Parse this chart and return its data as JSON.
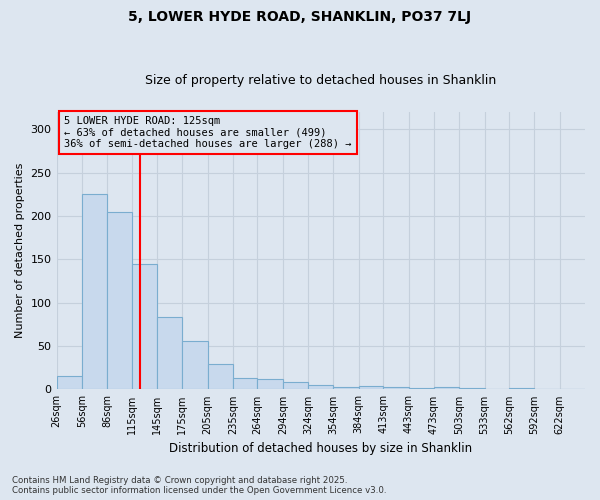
{
  "title": "5, LOWER HYDE ROAD, SHANKLIN, PO37 7LJ",
  "subtitle": "Size of property relative to detached houses in Shanklin",
  "xlabel": "Distribution of detached houses by size in Shanklin",
  "ylabel": "Number of detached properties",
  "bar_color": "#c8d9ed",
  "bar_edge_color": "#7aadcf",
  "background_color": "#dde6f0",
  "bins": [
    26,
    56,
    86,
    115,
    145,
    175,
    205,
    235,
    264,
    294,
    324,
    354,
    384,
    413,
    443,
    473,
    503,
    533,
    562,
    592,
    622
  ],
  "bin_labels": [
    "26sqm",
    "56sqm",
    "86sqm",
    "115sqm",
    "145sqm",
    "175sqm",
    "205sqm",
    "235sqm",
    "264sqm",
    "294sqm",
    "324sqm",
    "354sqm",
    "384sqm",
    "413sqm",
    "443sqm",
    "473sqm",
    "503sqm",
    "533sqm",
    "562sqm",
    "592sqm",
    "622sqm"
  ],
  "values": [
    15,
    225,
    205,
    145,
    83,
    56,
    29,
    13,
    12,
    8,
    5,
    3,
    4,
    3,
    2,
    3,
    2,
    1,
    2,
    1,
    1
  ],
  "annotation_title": "5 LOWER HYDE ROAD: 125sqm",
  "annotation_line1": "← 63% of detached houses are smaller (499)",
  "annotation_line2": "36% of semi-detached houses are larger (288) →",
  "red_line_x": 125,
  "ylim": [
    0,
    320
  ],
  "yticks": [
    0,
    50,
    100,
    150,
    200,
    250,
    300
  ],
  "footer_line1": "Contains HM Land Registry data © Crown copyright and database right 2025.",
  "footer_line2": "Contains public sector information licensed under the Open Government Licence v3.0.",
  "grid_color": "#c5d0dc"
}
